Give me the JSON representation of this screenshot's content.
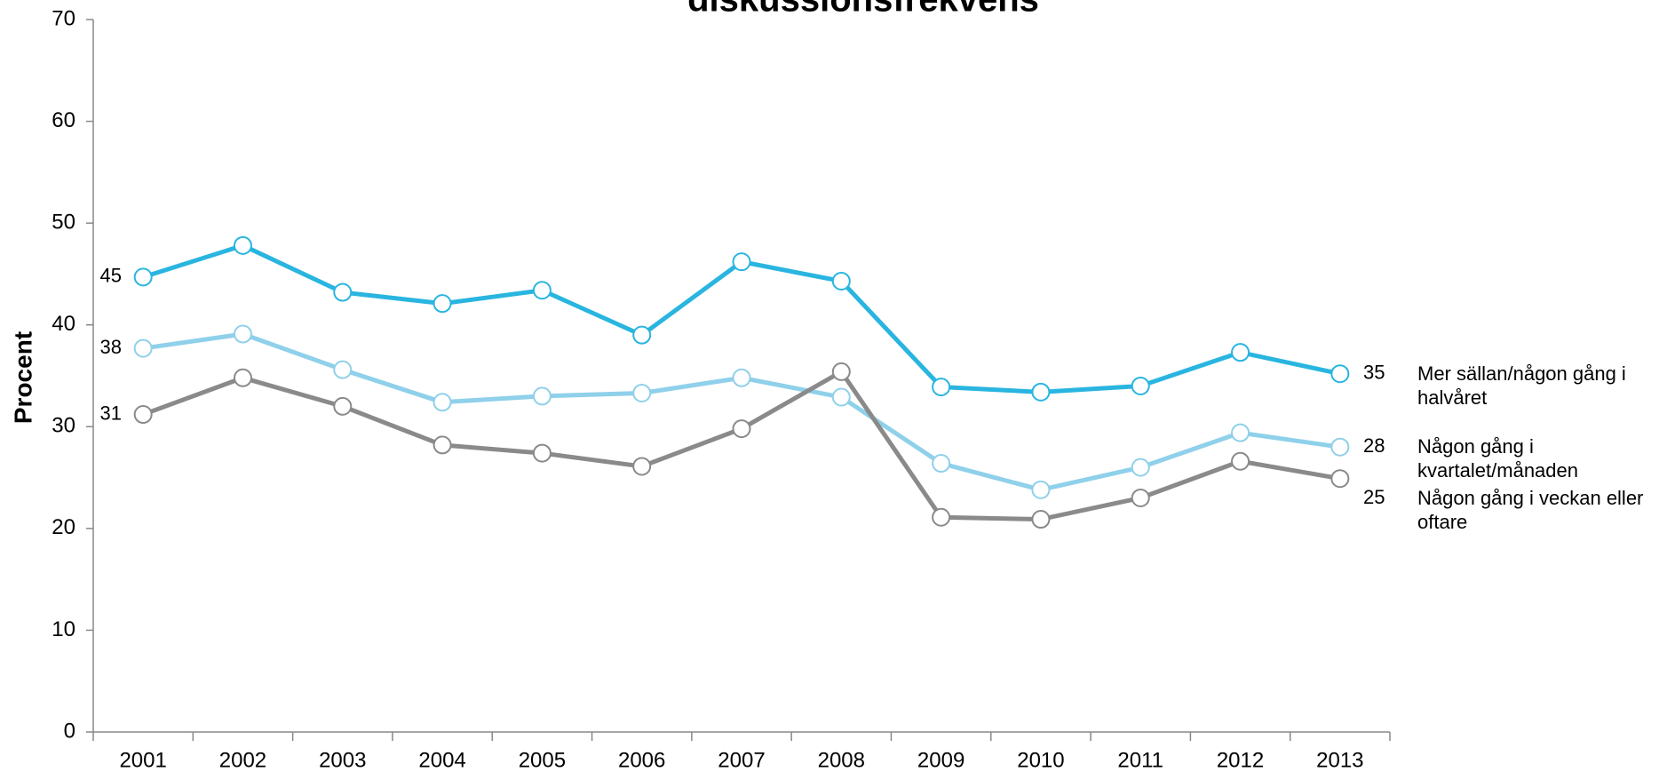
{
  "chart_data": {
    "type": "line",
    "title": "diskussionsfrekvens",
    "y_label": "Procent",
    "categories": [
      "2001",
      "2002",
      "2003",
      "2004",
      "2005",
      "2006",
      "2007",
      "2008",
      "2009",
      "2010",
      "2011",
      "2012",
      "2013"
    ],
    "series": [
      {
        "name": "Mer sällan/någon gång i halvåret",
        "color": "#29b5e0",
        "values": [
          44.7,
          47.8,
          43.2,
          42.1,
          43.4,
          39.0,
          46.2,
          44.3,
          33.9,
          33.4,
          34.0,
          37.3,
          35.2
        ],
        "value_labels": [
          "45",
          null,
          null,
          null,
          null,
          null,
          null,
          null,
          null,
          null,
          null,
          null,
          "35"
        ]
      },
      {
        "name": "Någon gång i kvartalet/månaden",
        "color": "#8fd0ea",
        "values": [
          37.7,
          39.1,
          35.6,
          32.4,
          33.0,
          33.3,
          34.8,
          32.9,
          26.4,
          23.8,
          26.0,
          29.4,
          28.0
        ],
        "value_labels": [
          "38",
          null,
          null,
          null,
          null,
          null,
          null,
          null,
          null,
          null,
          null,
          null,
          "28"
        ]
      },
      {
        "name": "Någon gång i veckan eller oftare",
        "color": "#8a8a8a",
        "values": [
          31.2,
          34.8,
          32.0,
          28.2,
          27.4,
          26.1,
          29.8,
          35.4,
          21.1,
          20.9,
          23.0,
          26.6,
          24.9
        ],
        "value_labels": [
          "31",
          null,
          null,
          null,
          null,
          null,
          null,
          null,
          null,
          null,
          null,
          null,
          "25"
        ]
      }
    ],
    "ylim": [
      0,
      70
    ],
    "yticks": [
      0,
      10,
      20,
      30,
      40,
      50,
      60,
      70
    ],
    "grid": false
  }
}
